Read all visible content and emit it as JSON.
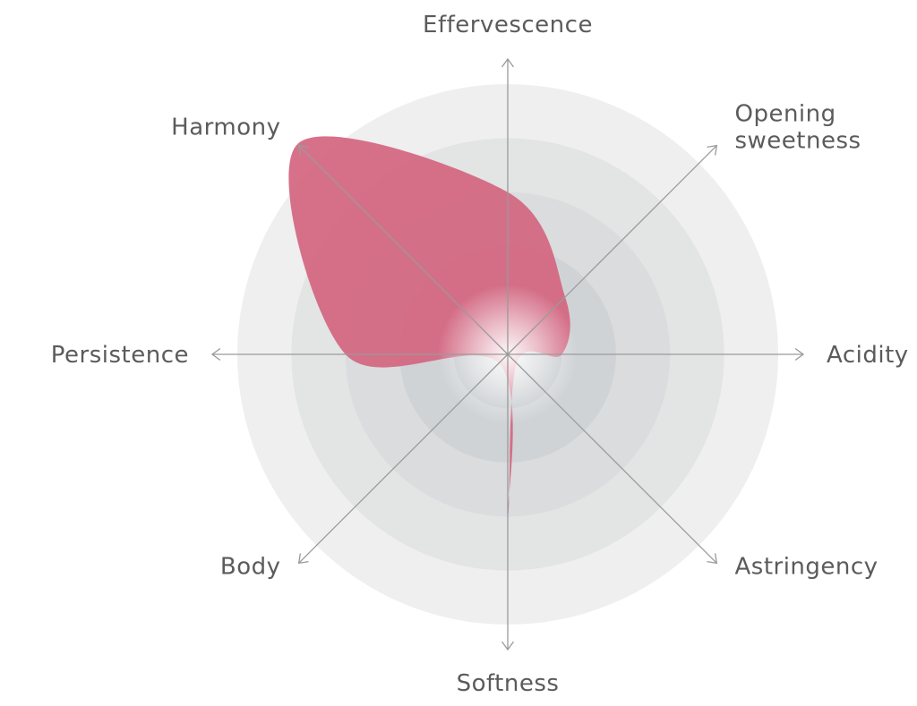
{
  "chart_data": {
    "type": "radar",
    "title": "",
    "axes": [
      {
        "label": [
          "Effervescence"
        ],
        "value": 3
      },
      {
        "label": [
          "Opening",
          "sweetness"
        ],
        "value": 1.5
      },
      {
        "label": [
          "Acidity"
        ],
        "value": 1
      },
      {
        "label": [
          "Astringency"
        ],
        "value": 0
      },
      {
        "label": [
          "Softness"
        ],
        "value": 3
      },
      {
        "label": [
          "Body"
        ],
        "value": 0
      },
      {
        "label": [
          "Persistence"
        ],
        "value": 3
      },
      {
        "label": [
          "Harmony"
        ],
        "value": 5.5
      }
    ],
    "scale_max": 5,
    "ring_count": 5,
    "colors": {
      "shape": "#d46580",
      "rings": [
        "#efefef",
        "#e3e4e4",
        "#dadcde",
        "#d0d3d6",
        "#c6cace"
      ],
      "center_glow": "#ffffff",
      "axis": "#9a9a9a"
    }
  }
}
